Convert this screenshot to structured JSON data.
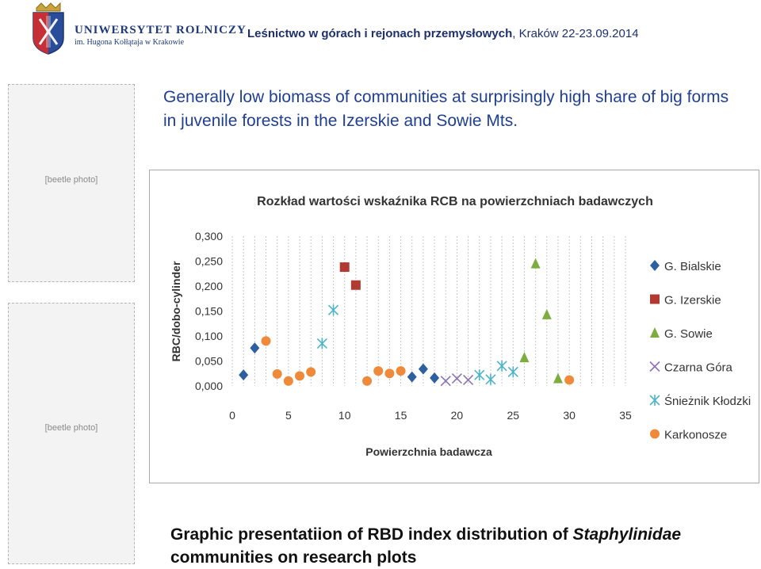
{
  "logo": {
    "name": "UNIWERSYTET ROLNICZY",
    "subtitle": "im. Hugona Kołłątaja w Krakowie"
  },
  "header": {
    "bold": "Leśnictwo w górach i rejonach przemysłowych",
    "rest": ", Kraków 22-23.09.2014"
  },
  "slide_title": "Generally low biomass of communities at surprisingly high share of big forms in juvenile forests in the Izerskie and Sowie Mts.",
  "caption": {
    "text": "Graphic presentatiion of RBD index distribution of ",
    "italic": "Staphylinidae",
    "text2": " communities on research plots"
  },
  "chart_data": {
    "type": "scatter",
    "title": "Rozkład wartości wskaźnika RCB na powierzchniach badawczych",
    "xlabel": "Powierzchnia badawcza",
    "ylabel": "RBC/dobo-cylinder",
    "xlim": [
      0,
      35
    ],
    "ylim": [
      0,
      0.3
    ],
    "x_ticks": [
      "0",
      "5",
      "10",
      "15",
      "20",
      "25",
      "30",
      "35"
    ],
    "y_ticks": [
      "0,000",
      "0,050",
      "0,100",
      "0,150",
      "0,200",
      "0,250",
      "0,300"
    ],
    "grid": "vertical dashed",
    "legend_position": "right",
    "series": [
      {
        "name": "G. Bialskie",
        "marker": "diamond",
        "color": "#2e5f9e",
        "points": [
          [
            1,
            0.022
          ],
          [
            2,
            0.076
          ],
          [
            16,
            0.018
          ],
          [
            17,
            0.034
          ],
          [
            18,
            0.016
          ]
        ]
      },
      {
        "name": "G. Izerskie",
        "marker": "square",
        "color": "#b23a33",
        "points": [
          [
            10,
            0.238
          ],
          [
            11,
            0.202
          ]
        ]
      },
      {
        "name": "G. Sowie",
        "marker": "triangle",
        "color": "#7cad3e",
        "points": [
          [
            26,
            0.057
          ],
          [
            27,
            0.245
          ],
          [
            28,
            0.143
          ],
          [
            29,
            0.015
          ]
        ]
      },
      {
        "name": "Czarna Góra",
        "marker": "x",
        "color": "#8c73b4",
        "points": [
          [
            19,
            0.01
          ],
          [
            20,
            0.015
          ],
          [
            21,
            0.012
          ]
        ]
      },
      {
        "name": "Śnieżnik Kłodzki",
        "marker": "star",
        "color": "#4db3c9",
        "points": [
          [
            8,
            0.085
          ],
          [
            9,
            0.152
          ],
          [
            22,
            0.022
          ],
          [
            23,
            0.013
          ],
          [
            24,
            0.04
          ],
          [
            25,
            0.028
          ]
        ]
      },
      {
        "name": "Karkonosze",
        "marker": "circle",
        "color": "#ee8a3a",
        "points": [
          [
            3,
            0.09
          ],
          [
            4,
            0.024
          ],
          [
            5,
            0.01
          ],
          [
            6,
            0.02
          ],
          [
            7,
            0.028
          ],
          [
            12,
            0.01
          ],
          [
            13,
            0.03
          ],
          [
            14,
            0.025
          ],
          [
            15,
            0.03
          ],
          [
            30,
            0.012
          ]
        ]
      }
    ]
  },
  "icons": {
    "coat_of_arms": "crest-icon",
    "beetle_top": "beetle-photo",
    "beetle_bottom": "beetle-photo"
  }
}
